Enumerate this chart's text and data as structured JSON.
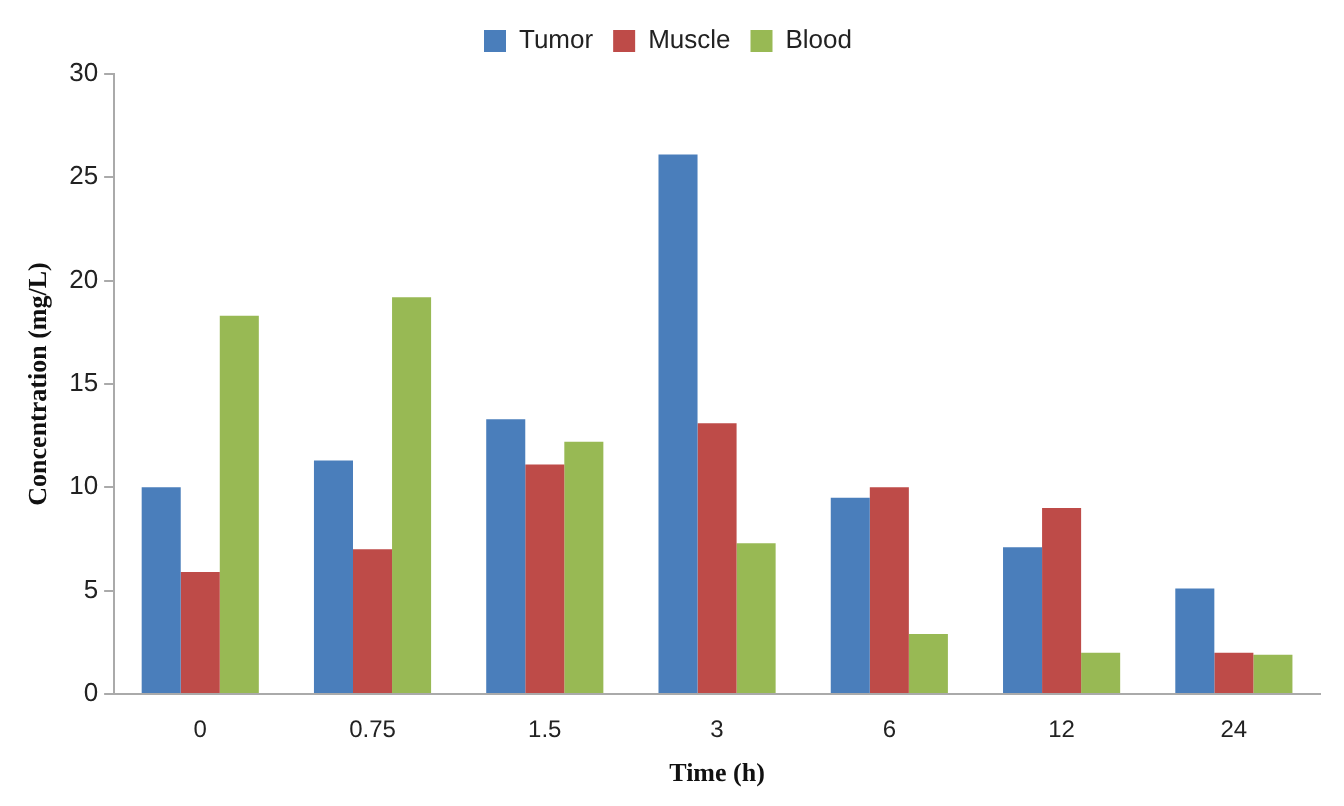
{
  "chart_data": {
    "type": "bar",
    "xlabel": "Time (h)",
    "ylabel": "Concentration (mg/L)",
    "categories": [
      "0",
      "0.75",
      "1.5",
      "3",
      "6",
      "12",
      "24"
    ],
    "series": [
      {
        "name": "Tumor",
        "color": "#4a7ebb",
        "values": [
          10.0,
          11.3,
          13.3,
          26.1,
          9.5,
          7.1,
          5.1
        ]
      },
      {
        "name": "Muscle",
        "color": "#be4b48",
        "values": [
          5.9,
          7.0,
          11.1,
          13.1,
          10.0,
          9.0,
          2.0
        ]
      },
      {
        "name": "Blood",
        "color": "#98b954",
        "values": [
          18.3,
          19.2,
          12.2,
          7.3,
          2.9,
          2.0,
          1.9
        ]
      }
    ],
    "ylim": [
      0,
      30
    ],
    "yticks": [
      0,
      5,
      10,
      15,
      20,
      25,
      30
    ],
    "grid": false,
    "legend": "top"
  }
}
